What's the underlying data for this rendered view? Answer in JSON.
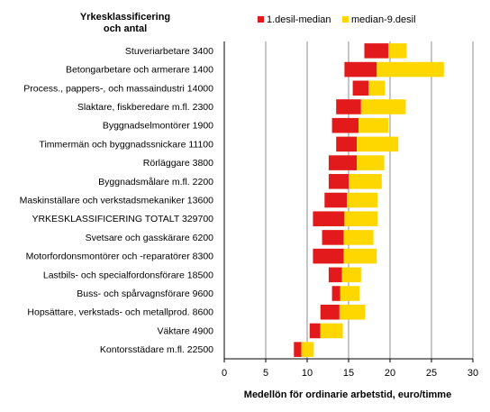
{
  "chart_data": {
    "type": "bar",
    "orientation": "horizontal",
    "stacked": "floating",
    "y_axis_title": "Yrkesklassificering och antal",
    "xlabel": "Medellön för ordinarie arbetstid, euro/timme",
    "xlim": [
      0,
      30
    ],
    "xticks": [
      0,
      5,
      10,
      15,
      20,
      25,
      30
    ],
    "grid": "vertical",
    "legend_position": "top-right",
    "categories": [
      "Stuveriarbetare  3400",
      "Betongarbetare och armerare  1400",
      "Process., pappers-, och massaindustri 14000",
      "Slaktare, fiskberedare m.fl.  2300",
      "Byggnadselmontörer  1900",
      "Timmermän och byggnadssnickare  11100",
      "Rörläggare  3800",
      "Byggnadsmålare m.fl.  2200",
      "Maskinställare och verkstadsmekaniker  13600",
      "YRKESKLASSIFICERING TOTALT  329700",
      "Svetsare och gasskärare  6200",
      "Motorfordonsmontörer och -reparatörer 8300",
      "Lastbils- och specialfordonsförare 18500",
      "Buss- och spårvagnsförare  9600",
      "Hopsättare, verkstads- och metallprod. 8600",
      "Väktare  4900",
      "Kontorsstädare m.fl. 22500"
    ],
    "series": [
      {
        "name": "1.desil-median",
        "color": "#e31a1c",
        "start": [
          16.9,
          14.5,
          15.5,
          13.5,
          13.0,
          13.5,
          12.6,
          12.6,
          12.1,
          10.7,
          11.8,
          10.7,
          12.6,
          13.0,
          11.6,
          10.3,
          8.4
        ],
        "end": [
          19.8,
          18.4,
          17.4,
          16.5,
          16.2,
          16.0,
          16.0,
          15.0,
          14.8,
          14.5,
          14.4,
          14.4,
          14.2,
          14.0,
          13.9,
          11.6,
          9.3
        ]
      },
      {
        "name": "median-9.desil",
        "color": "#ffd700",
        "start": [
          19.8,
          18.4,
          17.4,
          16.5,
          16.2,
          16.0,
          16.0,
          15.0,
          14.8,
          14.5,
          14.4,
          14.4,
          14.2,
          14.0,
          13.9,
          11.6,
          9.3
        ],
        "end": [
          22.0,
          26.5,
          19.4,
          21.9,
          19.8,
          21.0,
          19.3,
          19.0,
          18.5,
          18.5,
          18.0,
          18.4,
          16.5,
          16.3,
          17.0,
          14.3,
          10.8
        ]
      }
    ]
  }
}
